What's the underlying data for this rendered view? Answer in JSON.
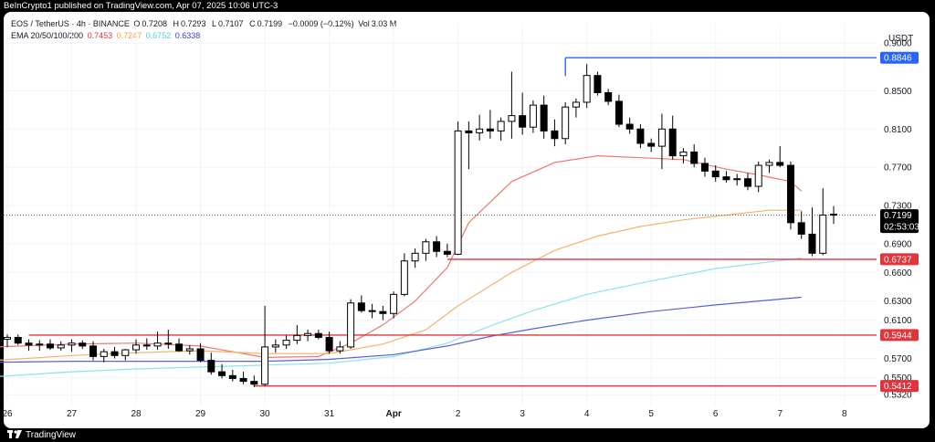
{
  "header": {
    "published": "BeInCrypto1 published on TradingView.com, Apr 07, 2025 10:06 UTC-3"
  },
  "legend": {
    "symbol": "EOS / TetherUS · 4h · BINANCE",
    "open_label": "O",
    "open": "0.7208",
    "high_label": "H",
    "high": "0.7293",
    "low_label": "L",
    "low": "0.7107",
    "close_label": "C",
    "close": "0.7199",
    "change": "−0.0009 (−0.12%)",
    "vol_label": "Vol",
    "vol": "3.03 M",
    "ema_label": "EMA 20/50/100/200",
    "ema20": "0.7453",
    "ema50": "0.7247",
    "ema100": "0.6752",
    "ema200": "0.6338"
  },
  "footer": {
    "brand": "TradingView",
    "brand_icon": "tradingview-logo-icon"
  },
  "colors": {
    "up": "#ffffff",
    "down": "#000000",
    "ema20": "#f0766e",
    "ema50": "#f5b26b",
    "ema100": "#8fe0f0",
    "ema200": "#5a5fd8",
    "support": "#e0353b",
    "resistance": "#2962ff",
    "grid": "#f0f3fa",
    "text": "#131722"
  },
  "chart_data": {
    "type": "candlestick",
    "pair": "EOS/USDT",
    "timeframe": "4h",
    "y_unit": "USDT",
    "ylim": [
      0.5265,
      0.9125
    ],
    "y_ticks": [
      "0.9000",
      "0.8500",
      "0.8100",
      "0.7700",
      "0.7300",
      "0.6900",
      "0.6600",
      "0.6300",
      "0.6100",
      "0.5700",
      "0.5500",
      "0.5320"
    ],
    "x_ticks": [
      "26",
      "27",
      "28",
      "29",
      "30",
      "31",
      "Apr",
      "2",
      "3",
      "4",
      "5",
      "6",
      "7",
      "8"
    ],
    "x_range": [
      "2025-03-26 00:00",
      "2025-04-08 12:00"
    ],
    "price_labels": [
      {
        "value": 0.8846,
        "text": "0.8846",
        "kind": "resistance"
      },
      {
        "value": 0.7199,
        "text": "0.7199",
        "countdown": "02:53:03",
        "kind": "current"
      },
      {
        "value": 0.6737,
        "text": "0.6737",
        "kind": "support"
      },
      {
        "value": 0.5944,
        "text": "0.5944",
        "kind": "support"
      },
      {
        "value": 0.5412,
        "text": "0.5412",
        "kind": "support"
      }
    ],
    "horizontal_levels": [
      {
        "value": 0.8846,
        "from": "2025-04-03 16:00",
        "kind": "resistance"
      },
      {
        "value": 0.6737,
        "from": "2025-04-01 20:00",
        "kind": "support"
      },
      {
        "value": 0.5944,
        "from": "2025-03-26 08:00",
        "kind": "support"
      },
      {
        "value": 0.5412,
        "from": "2025-03-29 20:00",
        "kind": "support"
      }
    ],
    "series": [
      {
        "name": "EMA 20",
        "points": [
          [
            "2025-03-25 20:00",
            0.582
          ],
          [
            "2025-03-27 00:00",
            0.585
          ],
          [
            "2025-03-28 00:00",
            0.586
          ],
          [
            "2025-03-29 00:00",
            0.583
          ],
          [
            "2025-03-30 00:00",
            0.571
          ],
          [
            "2025-03-30 20:00",
            0.572
          ],
          [
            "2025-03-31 08:00",
            0.586
          ],
          [
            "2025-03-31 20:00",
            0.605
          ],
          [
            "2025-04-01 08:00",
            0.63
          ],
          [
            "2025-04-01 20:00",
            0.665
          ],
          [
            "2025-04-02 04:00",
            0.712
          ],
          [
            "2025-04-02 20:00",
            0.755
          ],
          [
            "2025-04-03 12:00",
            0.775
          ],
          [
            "2025-04-04 04:00",
            0.782
          ],
          [
            "2025-04-04 20:00",
            0.78
          ],
          [
            "2025-04-05 12:00",
            0.778
          ],
          [
            "2025-04-06 04:00",
            0.768
          ],
          [
            "2025-04-06 16:00",
            0.762
          ],
          [
            "2025-04-07 04:00",
            0.755
          ],
          [
            "2025-04-07 08:00",
            0.745
          ]
        ]
      },
      {
        "name": "EMA 50",
        "points": [
          [
            "2025-03-25 20:00",
            0.568
          ],
          [
            "2025-03-27 00:00",
            0.573
          ],
          [
            "2025-03-28 00:00",
            0.576
          ],
          [
            "2025-03-29 00:00",
            0.578
          ],
          [
            "2025-03-30 00:00",
            0.575
          ],
          [
            "2025-03-31 00:00",
            0.575
          ],
          [
            "2025-03-31 20:00",
            0.585
          ],
          [
            "2025-04-01 12:00",
            0.6
          ],
          [
            "2025-04-02 00:00",
            0.625
          ],
          [
            "2025-04-02 20:00",
            0.66
          ],
          [
            "2025-04-03 12:00",
            0.683
          ],
          [
            "2025-04-04 04:00",
            0.698
          ],
          [
            "2025-04-04 20:00",
            0.708
          ],
          [
            "2025-04-05 12:00",
            0.715
          ],
          [
            "2025-04-06 04:00",
            0.72
          ],
          [
            "2025-04-06 20:00",
            0.725
          ],
          [
            "2025-04-07 08:00",
            0.725
          ]
        ]
      },
      {
        "name": "EMA 100",
        "points": [
          [
            "2025-03-25 20:00",
            0.551
          ],
          [
            "2025-03-27 00:00",
            0.556
          ],
          [
            "2025-03-28 00:00",
            0.559
          ],
          [
            "2025-03-29 00:00",
            0.561
          ],
          [
            "2025-03-30 00:00",
            0.563
          ],
          [
            "2025-03-31 00:00",
            0.565
          ],
          [
            "2025-04-01 00:00",
            0.572
          ],
          [
            "2025-04-01 20:00",
            0.586
          ],
          [
            "2025-04-02 12:00",
            0.604
          ],
          [
            "2025-04-03 04:00",
            0.62
          ],
          [
            "2025-04-04 00:00",
            0.637
          ],
          [
            "2025-04-05 00:00",
            0.651
          ],
          [
            "2025-04-06 00:00",
            0.664
          ],
          [
            "2025-04-06 20:00",
            0.671
          ],
          [
            "2025-04-07 08:00",
            0.675
          ]
        ]
      },
      {
        "name": "EMA 200",
        "points": [
          [
            "2025-03-25 20:00",
            0.566
          ],
          [
            "2025-03-27 00:00",
            0.567
          ],
          [
            "2025-03-28 00:00",
            0.567
          ],
          [
            "2025-03-29 00:00",
            0.567
          ],
          [
            "2025-03-30 00:00",
            0.567
          ],
          [
            "2025-03-31 00:00",
            0.569
          ],
          [
            "2025-04-01 00:00",
            0.574
          ],
          [
            "2025-04-01 20:00",
            0.583
          ],
          [
            "2025-04-02 12:00",
            0.593
          ],
          [
            "2025-04-03 04:00",
            0.601
          ],
          [
            "2025-04-04 00:00",
            0.61
          ],
          [
            "2025-04-05 00:00",
            0.619
          ],
          [
            "2025-04-06 00:00",
            0.626
          ],
          [
            "2025-04-07 08:00",
            0.634
          ]
        ]
      }
    ],
    "candles": [
      {
        "t": "2025-03-25 20:00",
        "o": 0.587,
        "h": 0.594,
        "l": 0.58,
        "c": 0.59
      },
      {
        "t": "2025-03-26 00:00",
        "o": 0.59,
        "h": 0.595,
        "l": 0.582,
        "c": 0.592
      },
      {
        "t": "2025-03-26 04:00",
        "o": 0.592,
        "h": 0.595,
        "l": 0.584,
        "c": 0.586
      },
      {
        "t": "2025-03-26 08:00",
        "o": 0.586,
        "h": 0.59,
        "l": 0.578,
        "c": 0.584
      },
      {
        "t": "2025-03-26 12:00",
        "o": 0.584,
        "h": 0.589,
        "l": 0.578,
        "c": 0.585
      },
      {
        "t": "2025-03-26 16:00",
        "o": 0.585,
        "h": 0.59,
        "l": 0.579,
        "c": 0.581
      },
      {
        "t": "2025-03-26 20:00",
        "o": 0.581,
        "h": 0.588,
        "l": 0.578,
        "c": 0.584
      },
      {
        "t": "2025-03-27 00:00",
        "o": 0.584,
        "h": 0.59,
        "l": 0.577,
        "c": 0.586
      },
      {
        "t": "2025-03-27 04:00",
        "o": 0.586,
        "h": 0.589,
        "l": 0.58,
        "c": 0.583
      },
      {
        "t": "2025-03-27 08:00",
        "o": 0.583,
        "h": 0.588,
        "l": 0.568,
        "c": 0.572
      },
      {
        "t": "2025-03-27 12:00",
        "o": 0.572,
        "h": 0.58,
        "l": 0.566,
        "c": 0.577
      },
      {
        "t": "2025-03-27 16:00",
        "o": 0.577,
        "h": 0.582,
        "l": 0.57,
        "c": 0.573
      },
      {
        "t": "2025-03-27 20:00",
        "o": 0.573,
        "h": 0.58,
        "l": 0.568,
        "c": 0.579
      },
      {
        "t": "2025-03-28 00:00",
        "o": 0.579,
        "h": 0.59,
        "l": 0.575,
        "c": 0.584
      },
      {
        "t": "2025-03-28 04:00",
        "o": 0.584,
        "h": 0.591,
        "l": 0.579,
        "c": 0.583
      },
      {
        "t": "2025-03-28 08:00",
        "o": 0.583,
        "h": 0.598,
        "l": 0.579,
        "c": 0.586
      },
      {
        "t": "2025-03-28 12:00",
        "o": 0.586,
        "h": 0.6,
        "l": 0.58,
        "c": 0.585
      },
      {
        "t": "2025-03-28 16:00",
        "o": 0.585,
        "h": 0.591,
        "l": 0.577,
        "c": 0.578
      },
      {
        "t": "2025-03-28 20:00",
        "o": 0.578,
        "h": 0.584,
        "l": 0.574,
        "c": 0.58
      },
      {
        "t": "2025-03-29 00:00",
        "o": 0.58,
        "h": 0.586,
        "l": 0.566,
        "c": 0.568
      },
      {
        "t": "2025-03-29 04:00",
        "o": 0.568,
        "h": 0.576,
        "l": 0.553,
        "c": 0.556
      },
      {
        "t": "2025-03-29 08:00",
        "o": 0.556,
        "h": 0.564,
        "l": 0.549,
        "c": 0.552
      },
      {
        "t": "2025-03-29 12:00",
        "o": 0.552,
        "h": 0.558,
        "l": 0.546,
        "c": 0.549
      },
      {
        "t": "2025-03-29 16:00",
        "o": 0.549,
        "h": 0.556,
        "l": 0.543,
        "c": 0.546
      },
      {
        "t": "2025-03-29 20:00",
        "o": 0.546,
        "h": 0.552,
        "l": 0.54,
        "c": 0.543
      },
      {
        "t": "2025-03-30 00:00",
        "o": 0.543,
        "h": 0.625,
        "l": 0.541,
        "c": 0.582
      },
      {
        "t": "2025-03-30 04:00",
        "o": 0.582,
        "h": 0.59,
        "l": 0.576,
        "c": 0.584
      },
      {
        "t": "2025-03-30 08:00",
        "o": 0.584,
        "h": 0.594,
        "l": 0.58,
        "c": 0.589
      },
      {
        "t": "2025-03-30 12:00",
        "o": 0.589,
        "h": 0.605,
        "l": 0.585,
        "c": 0.594
      },
      {
        "t": "2025-03-30 16:00",
        "o": 0.594,
        "h": 0.6,
        "l": 0.588,
        "c": 0.596
      },
      {
        "t": "2025-03-30 20:00",
        "o": 0.596,
        "h": 0.6,
        "l": 0.59,
        "c": 0.592
      },
      {
        "t": "2025-03-31 00:00",
        "o": 0.592,
        "h": 0.598,
        "l": 0.575,
        "c": 0.578
      },
      {
        "t": "2025-03-31 04:00",
        "o": 0.578,
        "h": 0.588,
        "l": 0.575,
        "c": 0.582
      },
      {
        "t": "2025-03-31 08:00",
        "o": 0.582,
        "h": 0.632,
        "l": 0.58,
        "c": 0.628
      },
      {
        "t": "2025-03-31 12:00",
        "o": 0.628,
        "h": 0.636,
        "l": 0.618,
        "c": 0.62
      },
      {
        "t": "2025-03-31 16:00",
        "o": 0.62,
        "h": 0.627,
        "l": 0.612,
        "c": 0.619
      },
      {
        "t": "2025-03-31 20:00",
        "o": 0.619,
        "h": 0.625,
        "l": 0.61,
        "c": 0.617
      },
      {
        "t": "2025-04-01 00:00",
        "o": 0.617,
        "h": 0.64,
        "l": 0.612,
        "c": 0.637
      },
      {
        "t": "2025-04-01 04:00",
        "o": 0.637,
        "h": 0.68,
        "l": 0.635,
        "c": 0.672
      },
      {
        "t": "2025-04-01 08:00",
        "o": 0.672,
        "h": 0.685,
        "l": 0.665,
        "c": 0.68
      },
      {
        "t": "2025-04-01 12:00",
        "o": 0.68,
        "h": 0.695,
        "l": 0.672,
        "c": 0.692
      },
      {
        "t": "2025-04-01 16:00",
        "o": 0.692,
        "h": 0.698,
        "l": 0.676,
        "c": 0.682
      },
      {
        "t": "2025-04-01 20:00",
        "o": 0.682,
        "h": 0.69,
        "l": 0.676,
        "c": 0.679
      },
      {
        "t": "2025-04-02 00:00",
        "o": 0.679,
        "h": 0.818,
        "l": 0.678,
        "c": 0.808
      },
      {
        "t": "2025-04-02 04:00",
        "o": 0.808,
        "h": 0.818,
        "l": 0.768,
        "c": 0.806
      },
      {
        "t": "2025-04-02 08:00",
        "o": 0.806,
        "h": 0.825,
        "l": 0.798,
        "c": 0.81
      },
      {
        "t": "2025-04-02 12:00",
        "o": 0.81,
        "h": 0.83,
        "l": 0.8,
        "c": 0.808
      },
      {
        "t": "2025-04-02 16:00",
        "o": 0.808,
        "h": 0.822,
        "l": 0.798,
        "c": 0.818
      },
      {
        "t": "2025-04-02 20:00",
        "o": 0.818,
        "h": 0.87,
        "l": 0.8,
        "c": 0.824
      },
      {
        "t": "2025-04-03 00:00",
        "o": 0.824,
        "h": 0.848,
        "l": 0.804,
        "c": 0.812
      },
      {
        "t": "2025-04-03 04:00",
        "o": 0.812,
        "h": 0.84,
        "l": 0.806,
        "c": 0.835
      },
      {
        "t": "2025-04-03 08:00",
        "o": 0.835,
        "h": 0.845,
        "l": 0.8,
        "c": 0.808
      },
      {
        "t": "2025-04-03 12:00",
        "o": 0.808,
        "h": 0.82,
        "l": 0.792,
        "c": 0.8
      },
      {
        "t": "2025-04-03 16:00",
        "o": 0.8,
        "h": 0.838,
        "l": 0.794,
        "c": 0.833
      },
      {
        "t": "2025-04-03 20:00",
        "o": 0.833,
        "h": 0.842,
        "l": 0.822,
        "c": 0.838
      },
      {
        "t": "2025-04-04 00:00",
        "o": 0.838,
        "h": 0.878,
        "l": 0.832,
        "c": 0.866
      },
      {
        "t": "2025-04-04 04:00",
        "o": 0.866,
        "h": 0.87,
        "l": 0.845,
        "c": 0.848
      },
      {
        "t": "2025-04-04 08:00",
        "o": 0.848,
        "h": 0.852,
        "l": 0.835,
        "c": 0.839
      },
      {
        "t": "2025-04-04 12:00",
        "o": 0.839,
        "h": 0.846,
        "l": 0.812,
        "c": 0.815
      },
      {
        "t": "2025-04-04 16:00",
        "o": 0.815,
        "h": 0.822,
        "l": 0.805,
        "c": 0.81
      },
      {
        "t": "2025-04-04 20:00",
        "o": 0.81,
        "h": 0.815,
        "l": 0.79,
        "c": 0.795
      },
      {
        "t": "2025-04-05 00:00",
        "o": 0.795,
        "h": 0.8,
        "l": 0.786,
        "c": 0.792
      },
      {
        "t": "2025-04-05 04:00",
        "o": 0.792,
        "h": 0.826,
        "l": 0.768,
        "c": 0.81
      },
      {
        "t": "2025-04-05 08:00",
        "o": 0.81,
        "h": 0.824,
        "l": 0.778,
        "c": 0.782
      },
      {
        "t": "2025-04-05 12:00",
        "o": 0.782,
        "h": 0.79,
        "l": 0.774,
        "c": 0.786
      },
      {
        "t": "2025-04-05 16:00",
        "o": 0.786,
        "h": 0.794,
        "l": 0.77,
        "c": 0.774
      },
      {
        "t": "2025-04-05 20:00",
        "o": 0.774,
        "h": 0.78,
        "l": 0.76,
        "c": 0.766
      },
      {
        "t": "2025-04-06 00:00",
        "o": 0.766,
        "h": 0.772,
        "l": 0.755,
        "c": 0.76
      },
      {
        "t": "2025-04-06 04:00",
        "o": 0.76,
        "h": 0.766,
        "l": 0.754,
        "c": 0.757
      },
      {
        "t": "2025-04-06 08:00",
        "o": 0.757,
        "h": 0.763,
        "l": 0.751,
        "c": 0.758
      },
      {
        "t": "2025-04-06 12:00",
        "o": 0.758,
        "h": 0.764,
        "l": 0.746,
        "c": 0.75
      },
      {
        "t": "2025-04-06 16:00",
        "o": 0.75,
        "h": 0.776,
        "l": 0.744,
        "c": 0.772
      },
      {
        "t": "2025-04-06 20:00",
        "o": 0.772,
        "h": 0.778,
        "l": 0.764,
        "c": 0.775
      },
      {
        "t": "2025-04-07 00:00",
        "o": 0.775,
        "h": 0.792,
        "l": 0.77,
        "c": 0.772
      },
      {
        "t": "2025-04-07 04:00",
        "o": 0.772,
        "h": 0.776,
        "l": 0.705,
        "c": 0.712
      },
      {
        "t": "2025-04-07 08:00",
        "o": 0.712,
        "h": 0.724,
        "l": 0.695,
        "c": 0.7
      },
      {
        "t": "2025-04-07 12:00",
        "o": 0.7,
        "h": 0.728,
        "l": 0.677,
        "c": 0.68
      },
      {
        "t": "2025-04-07 16:00",
        "o": 0.68,
        "h": 0.748,
        "l": 0.678,
        "c": 0.72
      },
      {
        "t": "2025-04-07 20:00",
        "o": 0.7208,
        "h": 0.7293,
        "l": 0.7107,
        "c": 0.7199
      }
    ]
  }
}
